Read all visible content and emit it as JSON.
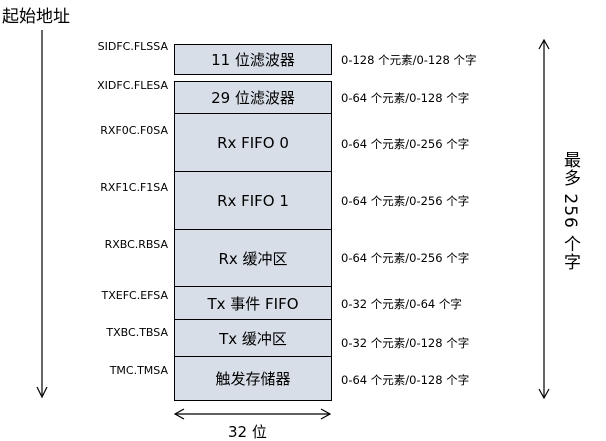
{
  "start_address_label": "起始地址",
  "segments": [
    {
      "register": "SIDFC.FLSSA",
      "name": "11 位滤波器",
      "size": "0-128 个元素/0-128 个字"
    },
    {
      "register": "XIDFC.FLESA",
      "name": "29 位滤波器",
      "size": "0-64 个元素/0-128 个字"
    },
    {
      "register": "RXF0C.F0SA",
      "name": "Rx FIFO 0",
      "size": "0-64 个元素/0-256 个字"
    },
    {
      "register": "RXF1C.F1SA",
      "name": "Rx FIFO 1",
      "size": "0-64 个元素/0-256 个字"
    },
    {
      "register": "RXBC.RBSA",
      "name": "Rx 缓冲区",
      "size": "0-64 个元素/0-256 个字"
    },
    {
      "register": "TXEFC.EFSA",
      "name": "Tx 事件 FIFO",
      "size": "0-32 个元素/0-64 个字"
    },
    {
      "register": "TXBC.TBSA",
      "name": "Tx 缓冲区",
      "size": "0-32 个元素/0-128 个字"
    },
    {
      "register": "TMC.TMSA",
      "name": "触发存储器",
      "size": "0-64 个元素/0-128 个字"
    }
  ],
  "width_label": "32 位",
  "max_size_label": "最多 256 个字",
  "colors": {
    "block_fill": "#d8dee8",
    "line": "#000000"
  }
}
